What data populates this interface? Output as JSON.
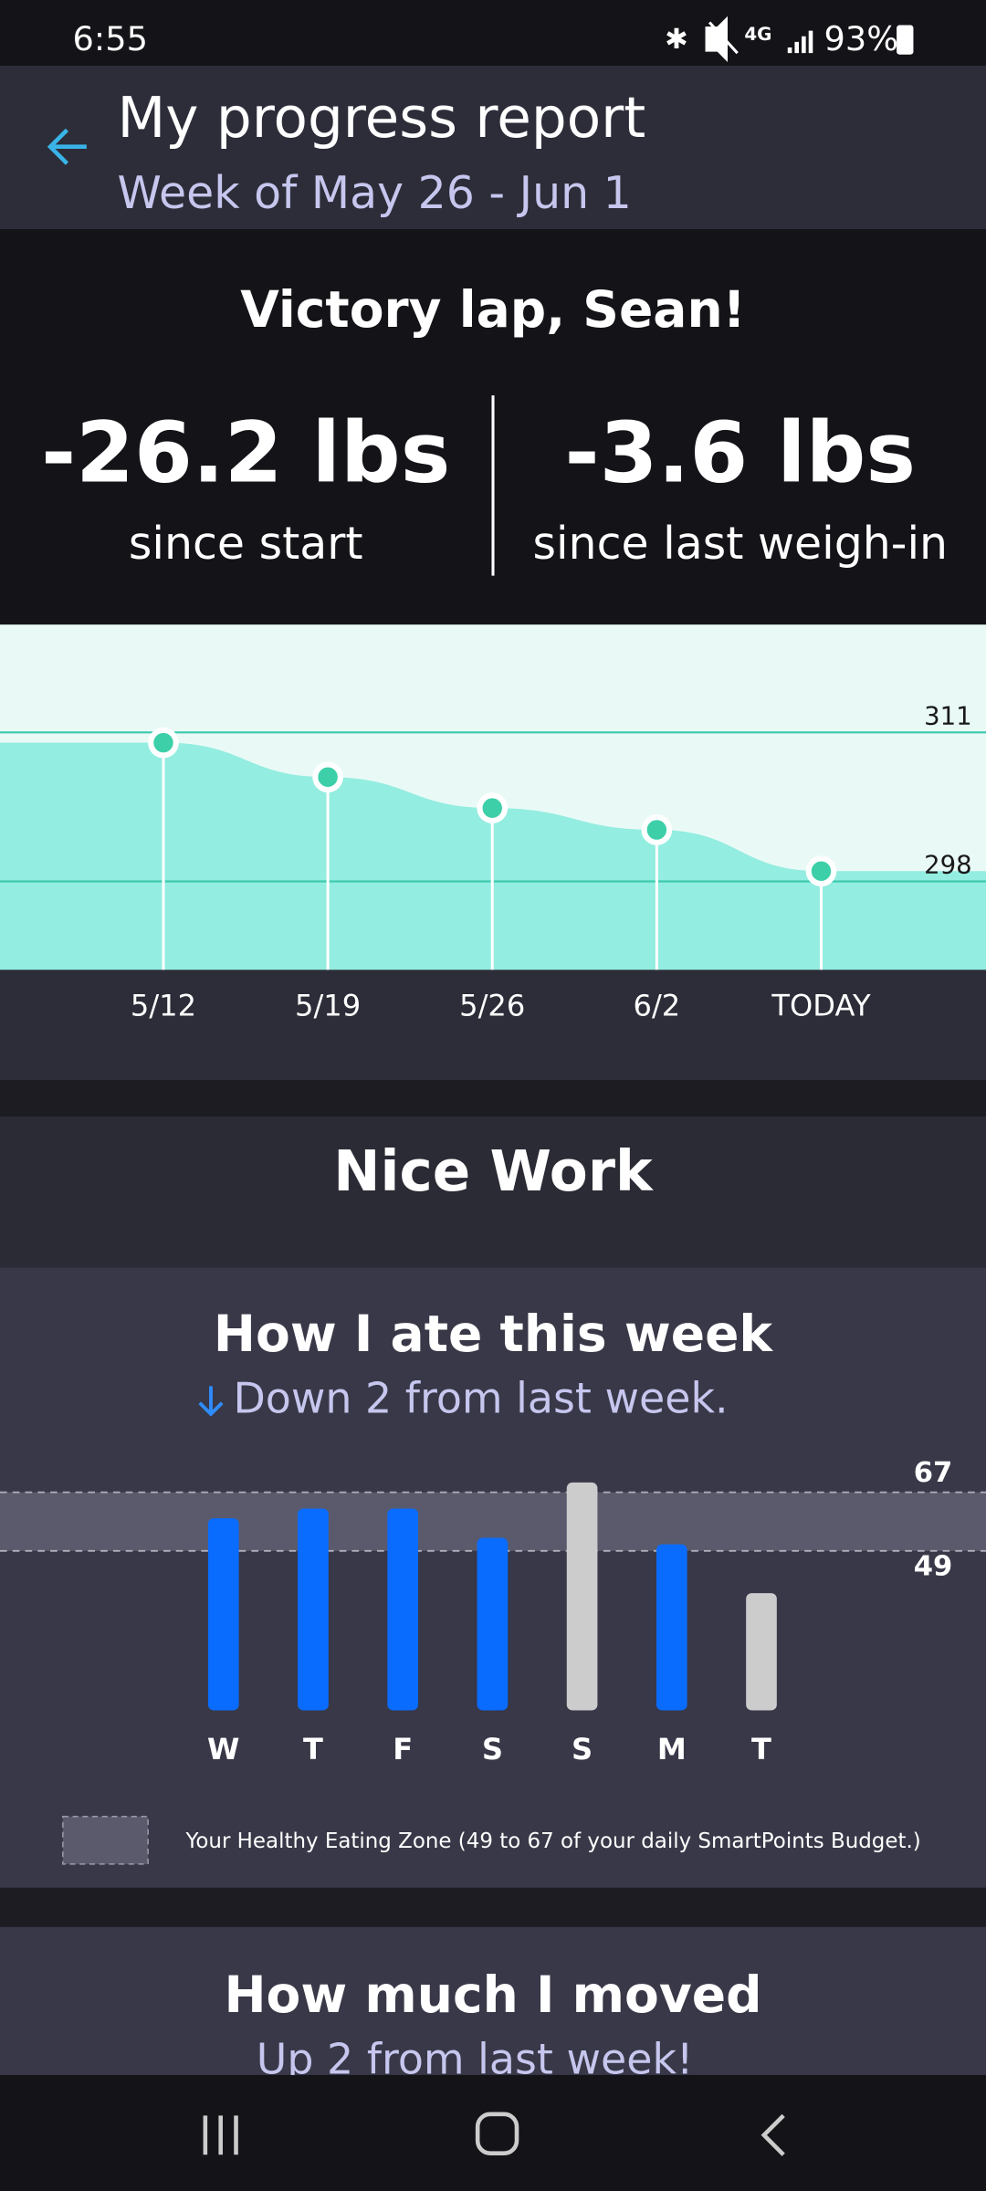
{
  "status_bar": {
    "time": "6:55",
    "network": "4G",
    "battery": "93%"
  },
  "header": {
    "title": "My progress report",
    "subtitle": "Week of May 26 - Jun 1"
  },
  "summary": {
    "heading": "Victory lap, Sean!",
    "stats": [
      {
        "value": "-26.2 lbs",
        "label": "since start"
      },
      {
        "value": "-3.6 lbs",
        "label": "since last weigh-in"
      }
    ]
  },
  "weight_chart": {
    "type": "area",
    "categories": [
      "5/12",
      "5/19",
      "5/26",
      "6/2",
      "TODAY"
    ],
    "values": [
      310.1,
      307.1,
      304.4,
      302.5,
      298.9
    ],
    "ylim": [
      290.3,
      320.4
    ],
    "yticks": [
      298,
      311
    ],
    "color": "#93ede0",
    "grid": true
  },
  "nice_work": {
    "title": "Nice Work"
  },
  "eating_chart": {
    "type": "bar",
    "title": "How I ate this week",
    "subtitle": "Down 2 from last week.",
    "categories": [
      "W",
      "T",
      "F",
      "S",
      "S",
      "M",
      "T"
    ],
    "values": [
      59,
      62,
      62,
      53,
      70,
      51,
      36
    ],
    "colors": [
      "#0a6cff",
      "#0a6cff",
      "#0a6cff",
      "#0a6cff",
      "#cccccc",
      "#0a6cff",
      "#cccccc"
    ],
    "ylim": [
      0,
      79
    ],
    "yticks": [
      49,
      67
    ],
    "legend": "Your Healthy Eating Zone (49 to 67 of your daily SmartPoints Budget.)"
  },
  "moved": {
    "title": "How much I moved",
    "subtitle": "Up 2 from last week!"
  }
}
